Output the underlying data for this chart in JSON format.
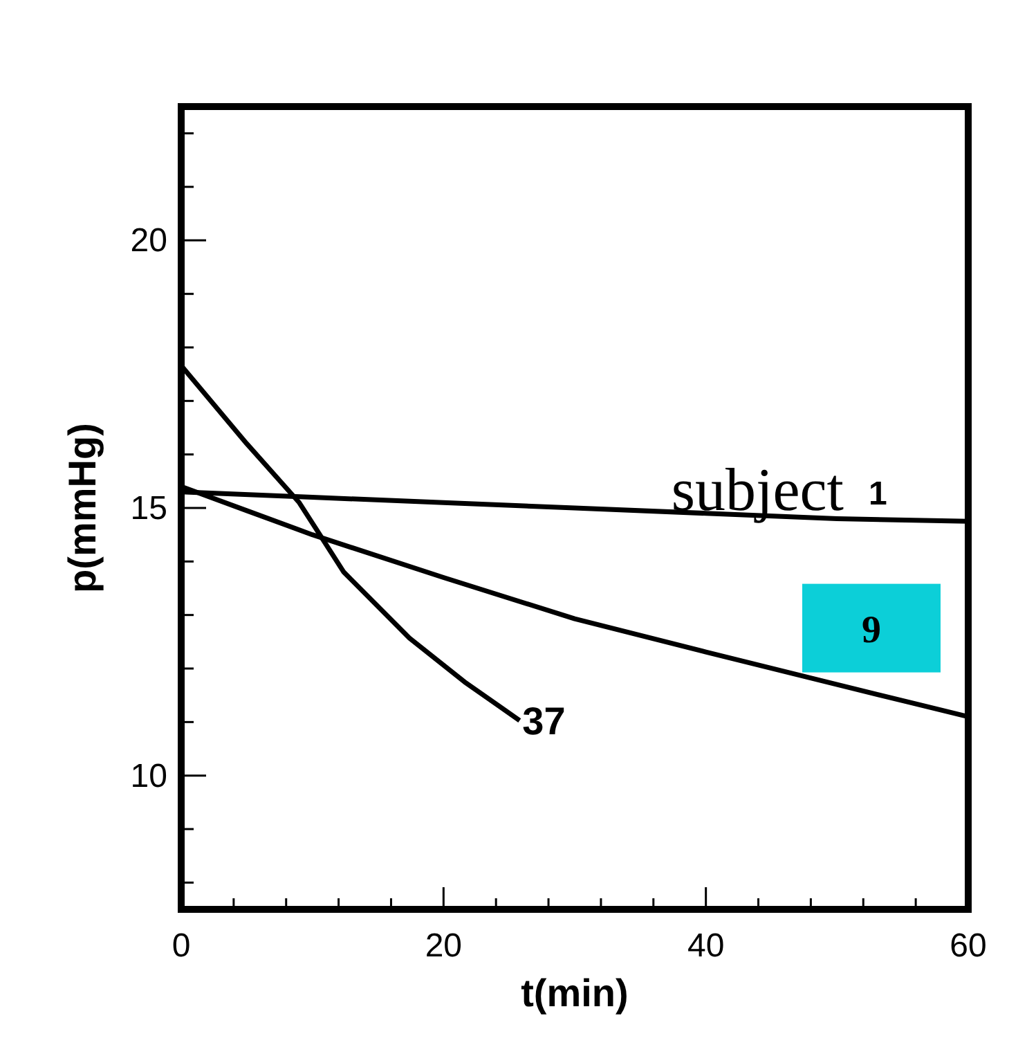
{
  "chart_data": {
    "type": "line",
    "xlabel": "t(min)",
    "ylabel": "p(mmHg)",
    "xlim": [
      0,
      60
    ],
    "ylim": [
      7.5,
      22.5
    ],
    "xticks": [
      0,
      {
        "value": 4,
        "label": null
      },
      {
        "value": 8,
        "label": null
      },
      {
        "value": 12,
        "label": null
      },
      {
        "value": 16,
        "label": null
      },
      20,
      {
        "value": 24,
        "label": null
      },
      {
        "value": 28,
        "label": null
      },
      {
        "value": 32,
        "label": null
      },
      {
        "value": 36,
        "label": null
      },
      40,
      {
        "value": 44,
        "label": null
      },
      {
        "value": 48,
        "label": null
      },
      {
        "value": 52,
        "label": null
      },
      {
        "value": 56,
        "label": null
      },
      60
    ],
    "yticks": [
      {
        "value": 8,
        "label": null
      },
      {
        "value": 9,
        "label": null
      },
      10,
      {
        "value": 11,
        "label": null
      },
      {
        "value": 12,
        "label": null
      },
      {
        "value": 13,
        "label": null
      },
      {
        "value": 14,
        "label": null
      },
      15,
      {
        "value": 16,
        "label": null
      },
      {
        "value": 17,
        "label": null
      },
      {
        "value": 18,
        "label": null
      },
      {
        "value": 19,
        "label": null
      },
      20,
      {
        "value": 21,
        "label": null
      },
      {
        "value": 22,
        "label": null
      }
    ],
    "grid": false,
    "marker": "none",
    "line_style": "solid",
    "annotations": [
      "subject"
    ],
    "series": [
      {
        "name": "1",
        "color": "#000000",
        "x": [
          0,
          10,
          20,
          30,
          40,
          50,
          60
        ],
        "values": [
          15.3,
          15.2,
          15.1,
          15.0,
          14.9,
          14.8,
          14.75
        ]
      },
      {
        "name": "9",
        "color": "#000000",
        "x": [
          0,
          5,
          10,
          20,
          30,
          40,
          50,
          60
        ],
        "values": [
          15.4,
          14.95,
          14.5,
          13.7,
          12.93,
          12.31,
          11.7,
          11.1
        ]
      },
      {
        "name": "37",
        "color": "#000000",
        "x": [
          0,
          5,
          9,
          12.4,
          17.4,
          21.6,
          25.8
        ],
        "values": [
          17.66,
          16.2,
          15.1,
          13.8,
          12.57,
          11.75,
          11.03
        ]
      }
    ]
  }
}
